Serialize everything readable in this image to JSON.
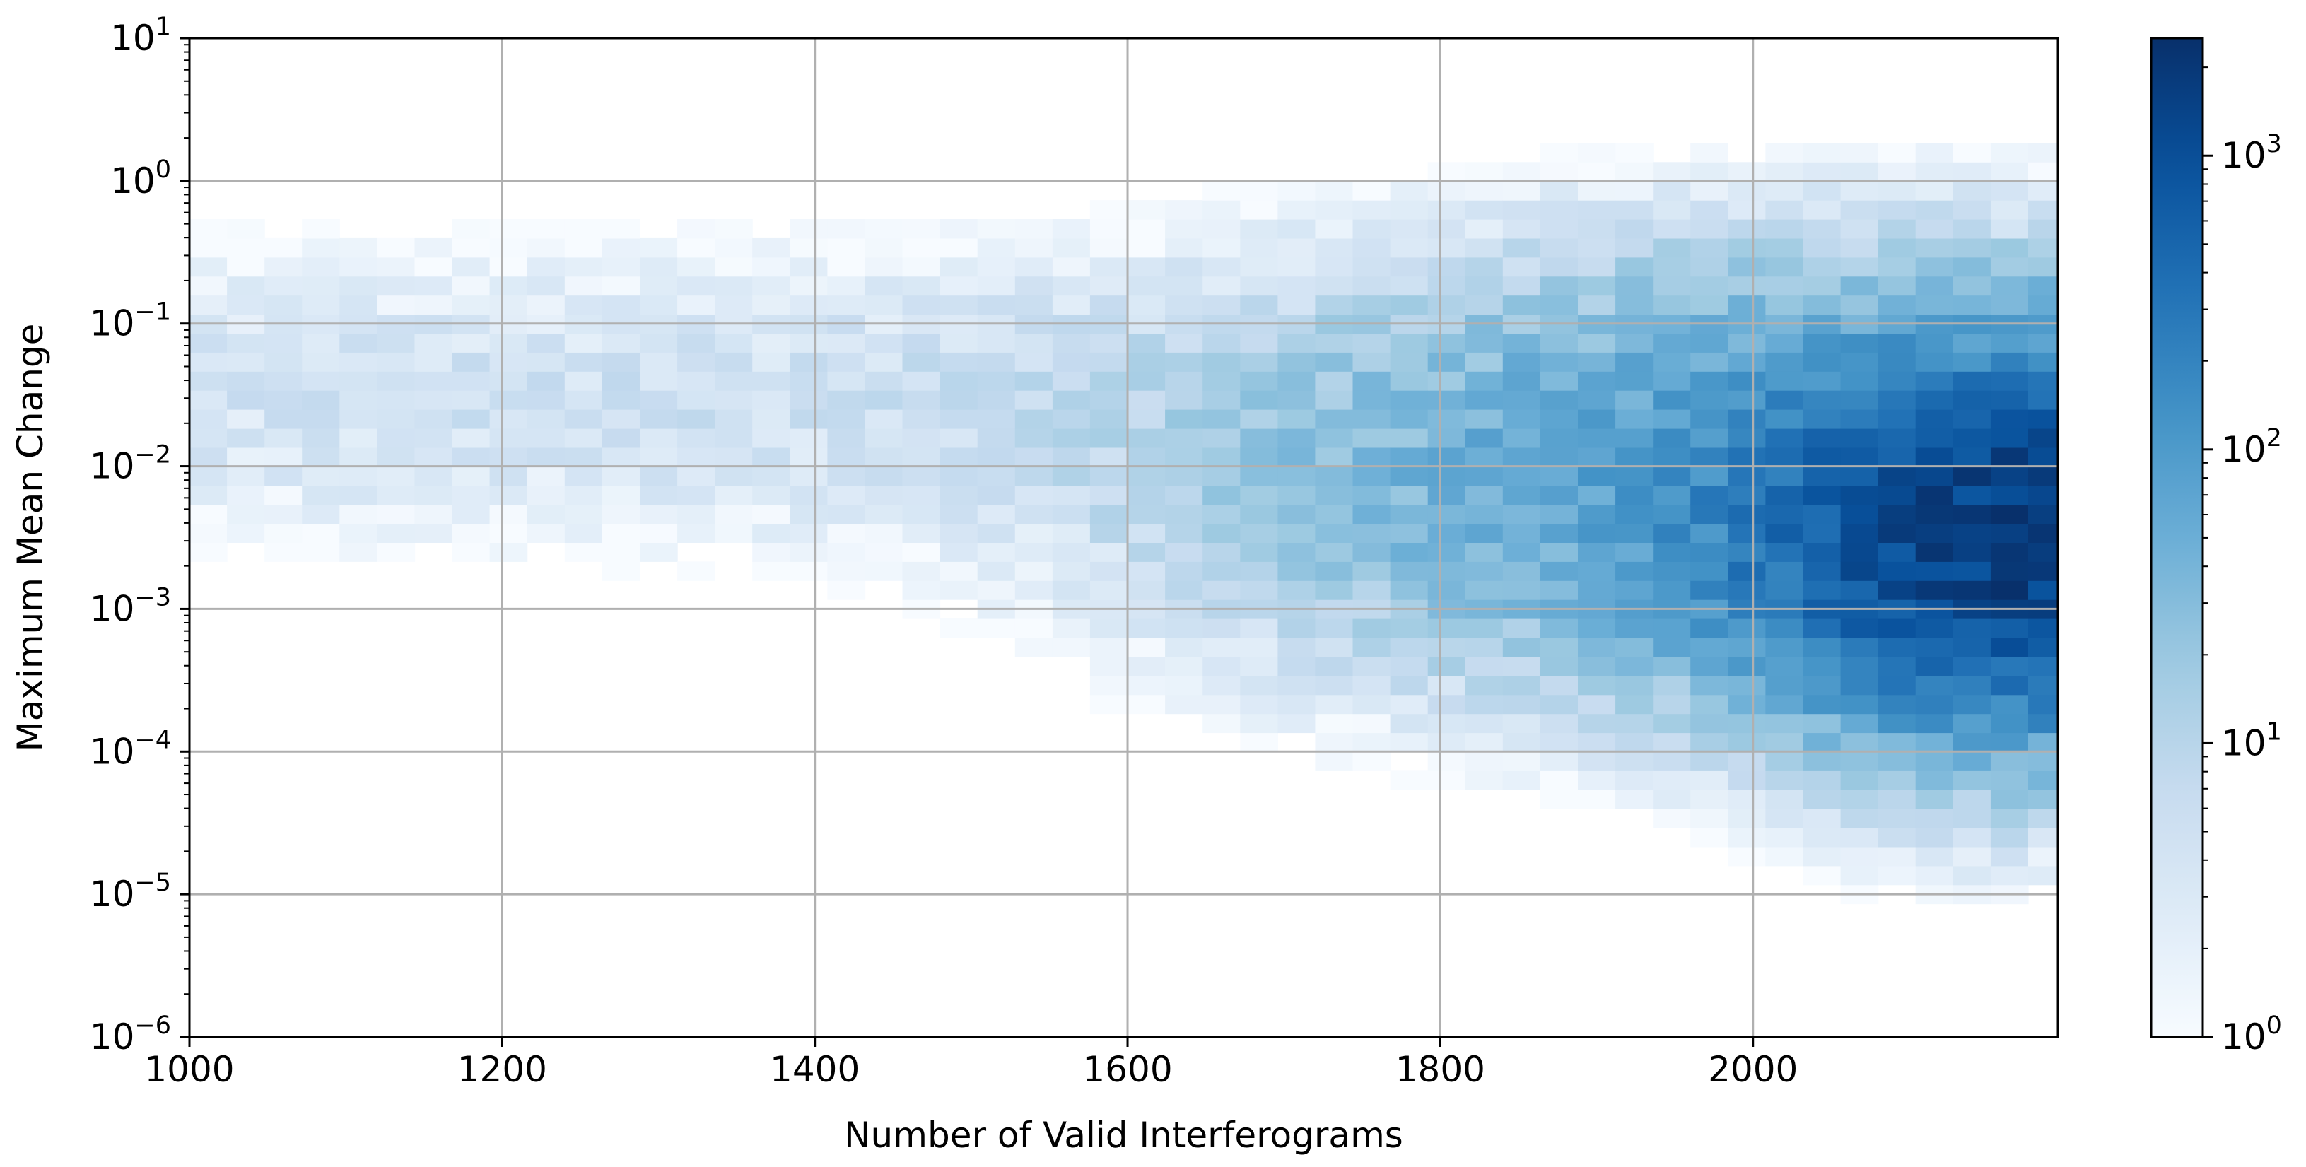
{
  "chart_data": {
    "type": "heatmap",
    "subtype": "2d-histogram",
    "title": "",
    "xlabel": "Number of Valid Interferograms",
    "ylabel": "Maximum Mean Change",
    "xlim": [
      1000,
      2195
    ],
    "ylim_log10": [
      -6,
      1
    ],
    "yscale": "log",
    "grid": true,
    "colormap": "Blues",
    "colorscale": "log",
    "colorbar": {
      "range_log10": [
        0,
        3.4
      ],
      "ticks": [
        {
          "exp": 0,
          "label_base": "10",
          "label_exp": "0"
        },
        {
          "exp": 1,
          "label_base": "10",
          "label_exp": "1"
        },
        {
          "exp": 2,
          "label_base": "10",
          "label_exp": "2"
        },
        {
          "exp": 3,
          "label_base": "10",
          "label_exp": "3"
        }
      ]
    },
    "xticks": [
      {
        "value": 1000,
        "label": "1000"
      },
      {
        "value": 1200,
        "label": "1200"
      },
      {
        "value": 1400,
        "label": "1400"
      },
      {
        "value": 1600,
        "label": "1600"
      },
      {
        "value": 1800,
        "label": "1800"
      },
      {
        "value": 2000,
        "label": "2000"
      }
    ],
    "yticks": [
      {
        "exp": 1,
        "label_base": "10",
        "label_exp": "1"
      },
      {
        "exp": 0,
        "label_base": "10",
        "label_exp": "0"
      },
      {
        "exp": -1,
        "label_base": "10",
        "label_exp": "−1"
      },
      {
        "exp": -2,
        "label_base": "10",
        "label_exp": "−2"
      },
      {
        "exp": -3,
        "label_base": "10",
        "label_exp": "−3"
      },
      {
        "exp": -4,
        "label_base": "10",
        "label_exp": "−4"
      },
      {
        "exp": -5,
        "label_base": "10",
        "label_exp": "−5"
      },
      {
        "exp": -6,
        "label_base": "10",
        "label_exp": "−6"
      }
    ],
    "bins": {
      "x_start": 1000,
      "x_width": 24,
      "x_count": 50,
      "y_start_log10": -6,
      "y_width_log10": 0.1333,
      "y_count": 53
    },
    "density_model": {
      "description": "approximate counts per bin, concentrated near x≈2180 and y≈10^-2.5, with a diffuse band around 10^-1.5 across all x",
      "components": [
        {
          "x_center": 2190,
          "x_spread": 90,
          "y_center_log10": -2.5,
          "y_spread_log10": 0.55,
          "peak_count": 2200
        },
        {
          "x_center": 2080,
          "x_spread": 200,
          "y_center_log10": -2.1,
          "y_spread_log10": 0.75,
          "peak_count": 120
        },
        {
          "x_center": 1650,
          "x_spread": 900,
          "y_center_log10": -1.5,
          "y_spread_log10": 0.6,
          "peak_count": 6
        },
        {
          "x_center": 2150,
          "x_spread": 80,
          "y_center_log10": -3.9,
          "y_spread_log10": 0.5,
          "peak_count": 12
        }
      ]
    }
  }
}
